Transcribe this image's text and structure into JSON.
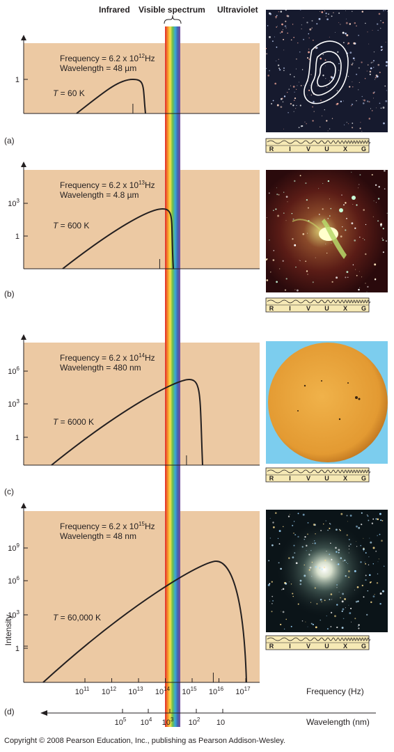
{
  "header": {
    "infrared": "Infrared",
    "visible": "Visible spectrum",
    "ultraviolet": "Ultraviolet"
  },
  "panels": [
    {
      "letter": "(a)",
      "frequency_text": "Frequency   = 6.2 x 10",
      "frequency_exp": "12",
      "frequency_unit": "Hz",
      "wavelength_text": "Wavelength = 48 µm",
      "temperature_value": " = 60 K",
      "y_ticks": [
        {
          "label": "1",
          "exp": ""
        }
      ],
      "filter_highlight": "R"
    },
    {
      "letter": "(b)",
      "frequency_text": "Frequency   = 6.2 x 10",
      "frequency_exp": "13",
      "frequency_unit": "Hz",
      "wavelength_text": "Wavelength = 4.8 µm",
      "temperature_value": " = 600 K",
      "y_ticks": [
        {
          "label": "10",
          "exp": "3"
        },
        {
          "label": "1",
          "exp": ""
        }
      ],
      "filter_highlight": "I"
    },
    {
      "letter": "(c)",
      "frequency_text": "Frequency   = 6.2 x 10",
      "frequency_exp": "14",
      "frequency_unit": "Hz",
      "wavelength_text": "Wavelength = 480 nm",
      "temperature_value": " = 6000 K",
      "y_ticks": [
        {
          "label": "10",
          "exp": "6"
        },
        {
          "label": "10",
          "exp": "3"
        },
        {
          "label": "1",
          "exp": ""
        }
      ],
      "filter_highlight": "V"
    },
    {
      "letter": "(d)",
      "frequency_text": "Frequency   = 6.2 x 10",
      "frequency_exp": "15",
      "frequency_unit": "Hz",
      "wavelength_text": "Wavelength = 48 nm",
      "temperature_value": " = 60,000 K",
      "y_ticks": [
        {
          "label": "10",
          "exp": "9"
        },
        {
          "label": "10",
          "exp": "6"
        },
        {
          "label": "10",
          "exp": "3"
        },
        {
          "label": "1",
          "exp": ""
        }
      ],
      "filter_highlight": "U"
    }
  ],
  "temperature_symbol": "T",
  "y_axis_label": "Intensity",
  "filter_letters": [
    "R",
    "I",
    "V",
    "U",
    "X",
    "G"
  ],
  "frequency_axis": {
    "label": "Frequency (Hz)",
    "ticks": [
      {
        "base": "10",
        "exp": "11"
      },
      {
        "base": "10",
        "exp": "12"
      },
      {
        "base": "10",
        "exp": "13"
      },
      {
        "base": "10",
        "exp": "14"
      },
      {
        "base": "10",
        "exp": "15"
      },
      {
        "base": "10",
        "exp": "16"
      },
      {
        "base": "10",
        "exp": "17"
      }
    ]
  },
  "wavelength_axis": {
    "label": "Wavelength (nm)",
    "ticks": [
      {
        "base": "10",
        "exp": "5"
      },
      {
        "base": "10",
        "exp": "4"
      },
      {
        "base": "10",
        "exp": "3"
      },
      {
        "base": "10",
        "exp": "2"
      },
      {
        "base": "10",
        "exp": ""
      }
    ]
  },
  "copyright": "Copyright © 2008 Pearson Education, Inc., publishing as Pearson Addison-Wesley.",
  "colors": {
    "panel_fill": "#ecc9a3",
    "highlight": "#e3262b",
    "filter_bar": "#f6e9b5",
    "sky_blue": "#7ccdee",
    "sun": "#e8a23a"
  }
}
